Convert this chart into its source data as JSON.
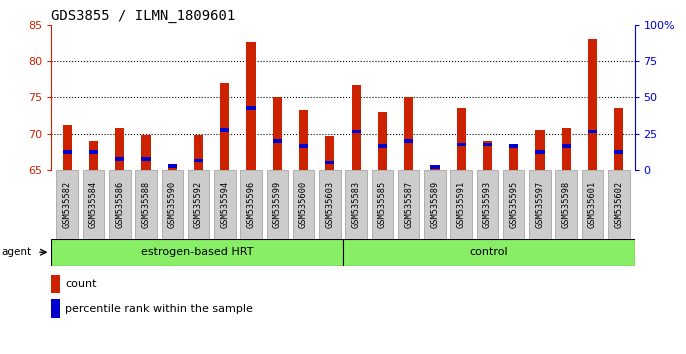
{
  "title": "GDS3855 / ILMN_1809601",
  "samples": [
    "GSM535582",
    "GSM535584",
    "GSM535586",
    "GSM535588",
    "GSM535590",
    "GSM535592",
    "GSM535594",
    "GSM535596",
    "GSM535599",
    "GSM535600",
    "GSM535603",
    "GSM535583",
    "GSM535585",
    "GSM535587",
    "GSM535589",
    "GSM535591",
    "GSM535593",
    "GSM535595",
    "GSM535597",
    "GSM535598",
    "GSM535601",
    "GSM535602"
  ],
  "count_values": [
    71.2,
    69.0,
    70.8,
    69.8,
    65.3,
    69.8,
    77.0,
    82.6,
    75.0,
    73.3,
    69.7,
    76.7,
    73.0,
    75.0,
    65.3,
    73.5,
    69.0,
    68.5,
    70.5,
    70.8,
    83.0,
    73.5
  ],
  "percentile_values": [
    67.5,
    67.5,
    66.5,
    66.5,
    65.5,
    66.3,
    70.5,
    73.5,
    69.0,
    68.3,
    66.0,
    70.3,
    68.3,
    69.0,
    65.4,
    68.5,
    68.5,
    68.3,
    67.5,
    68.3,
    70.3,
    67.5
  ],
  "group1_count": 11,
  "group2_count": 11,
  "group1_label": "estrogen-based HRT",
  "group2_label": "control",
  "ymin": 65,
  "ymax": 85,
  "yticks_left": [
    65,
    70,
    75,
    80,
    85
  ],
  "yticks_right": [
    0,
    25,
    50,
    75,
    100
  ],
  "bar_color": "#cc2200",
  "pct_color": "#0000cc",
  "group_bg_color": "#88ee66",
  "tick_bg_color": "#cccccc",
  "tick_border_color": "#999999",
  "legend_count_label": "count",
  "legend_pct_label": "percentile rank within the sample",
  "agent_label": "agent"
}
